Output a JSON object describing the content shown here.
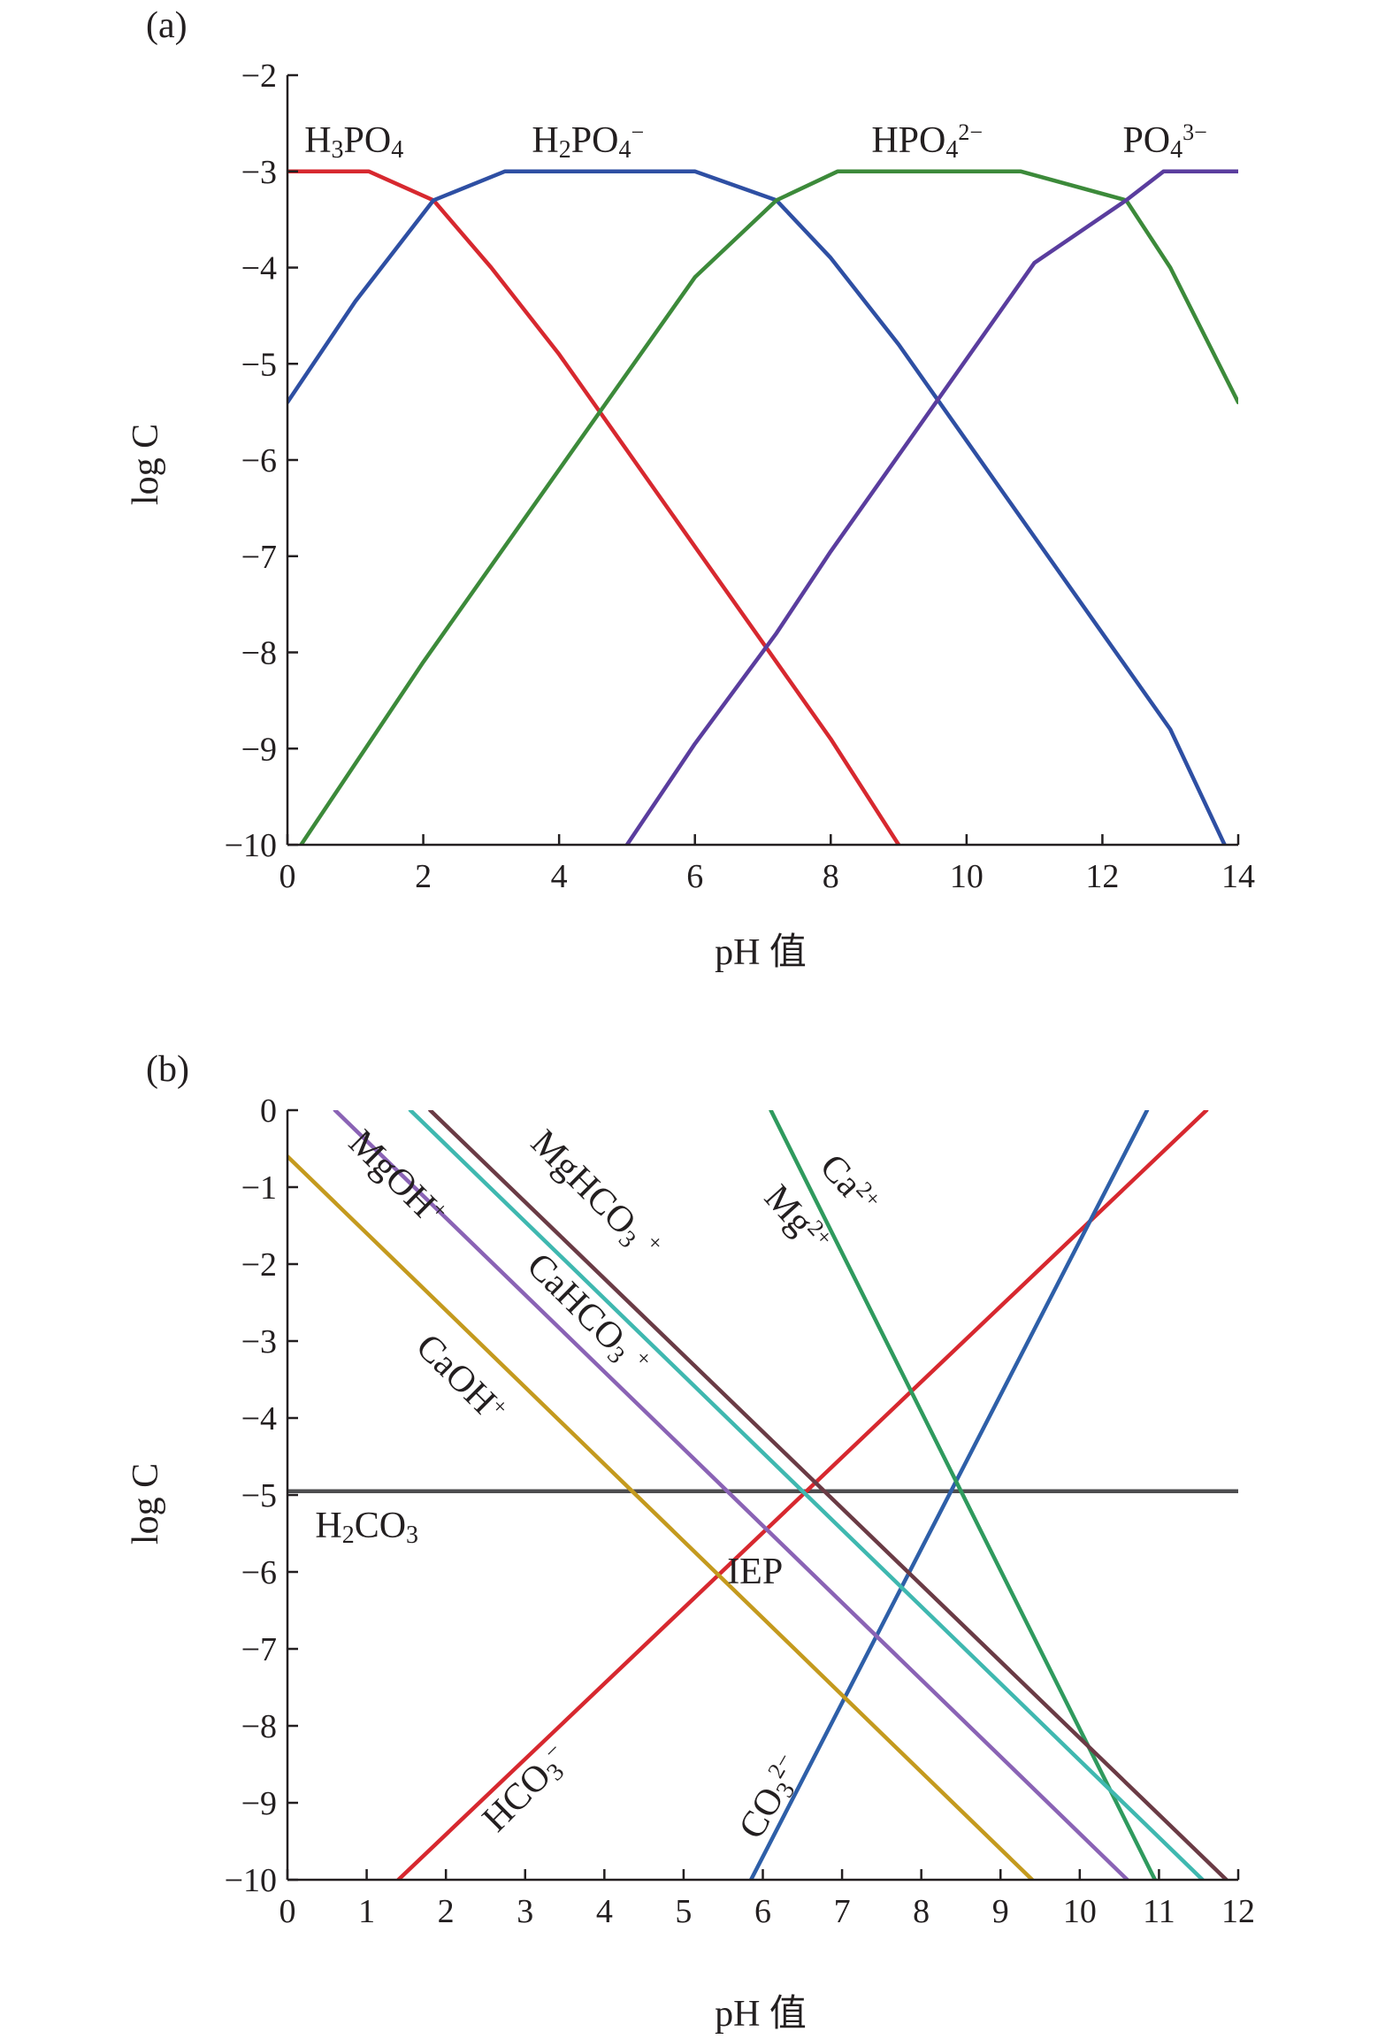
{
  "chart_data": [
    {
      "panel": "(a)",
      "type": "line",
      "xlabel": "pH 值",
      "ylabel": "log C",
      "xlim": [
        0,
        14
      ],
      "ylim": [
        -10,
        -2
      ],
      "xticks": [
        0,
        2,
        4,
        6,
        8,
        10,
        12,
        14
      ],
      "yticks": [
        -2,
        -3,
        -4,
        -5,
        -6,
        -7,
        -8,
        -9,
        -10
      ],
      "grid": false,
      "legend": "none",
      "total_concentration_log": -3,
      "pKa": [
        2.15,
        7.2,
        12.35
      ],
      "series": [
        {
          "label": [
            {
              "t": "H"
            },
            {
              "t": "3",
              "sub": true
            },
            {
              "t": "PO"
            },
            {
              "t": "4",
              "sub": true
            }
          ],
          "color": "#d7282f",
          "x": [
            0,
            1.2,
            2.15,
            3,
            4,
            5,
            6,
            7,
            8,
            9
          ],
          "y": [
            -3,
            -3,
            -3.3,
            -4.0,
            -4.9,
            -5.9,
            -6.9,
            -7.9,
            -8.9,
            -10
          ]
        },
        {
          "label": [
            {
              "t": "H"
            },
            {
              "t": "2",
              "sub": true
            },
            {
              "t": "PO"
            },
            {
              "t": "4",
              "sub": true
            },
            {
              "t": "−",
              "sup": true
            }
          ],
          "color": "#2e4fa3",
          "x": [
            0,
            1,
            2.15,
            3.2,
            6,
            7.2,
            8,
            9,
            10,
            11,
            12,
            13,
            13.8
          ],
          "y": [
            -5.4,
            -4.35,
            -3.3,
            -3,
            -3,
            -3.3,
            -3.9,
            -4.8,
            -5.8,
            -6.8,
            -7.8,
            -8.8,
            -10
          ]
        },
        {
          "label": [
            {
              "t": "HPO"
            },
            {
              "t": "4",
              "sub": true
            },
            {
              "t": "2−",
              "sup": true
            }
          ],
          "color": "#3c8a3a",
          "x": [
            0.2,
            2,
            4,
            6,
            7.2,
            8.1,
            10.8,
            12.35,
            13,
            14
          ],
          "y": [
            -10,
            -8.1,
            -6.1,
            -4.1,
            -3.3,
            -3,
            -3,
            -3.3,
            -4.0,
            -5.4
          ]
        },
        {
          "label": [
            {
              "t": "PO"
            },
            {
              "t": "4",
              "sub": true
            },
            {
              "t": "3−",
              "sup": true
            }
          ],
          "color": "#5a3d9e",
          "x": [
            5,
            6,
            7.2,
            8,
            9,
            10,
            11,
            12.35,
            12.9,
            14
          ],
          "y": [
            -10,
            -8.95,
            -7.8,
            -6.95,
            -5.95,
            -4.95,
            -3.95,
            -3.3,
            -3,
            -3
          ]
        }
      ],
      "annotations": [
        {
          "text": [
            {
              "t": "H"
            },
            {
              "t": "3",
              "sub": true
            },
            {
              "t": "PO"
            },
            {
              "t": "4",
              "sub": true
            }
          ],
          "x": 0.25,
          "y": -2.8,
          "angle": 0
        },
        {
          "text": [
            {
              "t": "H"
            },
            {
              "t": "2",
              "sub": true
            },
            {
              "t": "PO"
            },
            {
              "t": "4",
              "sub": true
            },
            {
              "t": "−",
              "sup": true
            }
          ],
          "x": 3.6,
          "y": -2.8,
          "angle": 0
        },
        {
          "text": [
            {
              "t": "HPO"
            },
            {
              "t": "4",
              "sub": true
            },
            {
              "t": "2−",
              "sup": true
            }
          ],
          "x": 8.6,
          "y": -2.8,
          "angle": 0
        },
        {
          "text": [
            {
              "t": "PO"
            },
            {
              "t": "4",
              "sub": true
            },
            {
              "t": "3−",
              "sup": true
            }
          ],
          "x": 12.3,
          "y": -2.8,
          "angle": 0
        }
      ]
    },
    {
      "panel": "(b)",
      "type": "line",
      "xlabel": "pH 值",
      "ylabel": "log C",
      "xlim": [
        0,
        12
      ],
      "ylim": [
        -10,
        0
      ],
      "xticks": [
        0,
        1,
        2,
        3,
        4,
        5,
        6,
        7,
        8,
        9,
        10,
        11,
        12
      ],
      "yticks": [
        0,
        -1,
        -2,
        -3,
        -4,
        -5,
        -6,
        -7,
        -8,
        -9,
        -10
      ],
      "grid": false,
      "legend": "none",
      "series": [
        {
          "label": [
            {
              "t": "H"
            },
            {
              "t": "2",
              "sub": true
            },
            {
              "t": "CO"
            },
            {
              "t": "3",
              "sub": true
            }
          ],
          "color": "#4d4d4f",
          "x": [
            0,
            12
          ],
          "y": [
            -4.95,
            -4.95
          ]
        },
        {
          "label": [
            {
              "t": "HCO"
            },
            {
              "t": "3",
              "sub": true
            },
            {
              "t": "−",
              "sup": true
            }
          ],
          "color": "#d7282f",
          "x": [
            1.4,
            11.6
          ],
          "y": [
            -10,
            0
          ]
        },
        {
          "label": [
            {
              "t": "CO"
            },
            {
              "t": "3",
              "sub": true
            },
            {
              "t": "2−",
              "sup": true
            }
          ],
          "color": "#2e5fa8",
          "x": [
            5.85,
            10.85
          ],
          "y": [
            -10,
            0
          ]
        },
        {
          "label": [
            {
              "t": "Ca"
            },
            {
              "t": "2+",
              "sup": true
            }
          ],
          "color": "#2f9a5e",
          "x": [
            6.1,
            10.95
          ],
          "y": [
            0,
            -10
          ]
        },
        {
          "label": [
            {
              "t": "MgHCO"
            },
            {
              "t": "3",
              "sub": true
            },
            {
              "t": "+",
              "sup": true
            }
          ],
          "color": "#6a3b45",
          "x": [
            1.8,
            11.85
          ],
          "y": [
            0,
            -10
          ]
        },
        {
          "label": [
            {
              "t": "CaHCO"
            },
            {
              "t": "3",
              "sub": true
            },
            {
              "t": "+",
              "sup": true
            }
          ],
          "color": "#3fb8b0",
          "x": [
            1.55,
            11.55
          ],
          "y": [
            0,
            -10
          ]
        },
        {
          "label": [
            {
              "t": "MgOH"
            },
            {
              "t": "+",
              "sup": true
            }
          ],
          "color": "#8a63b5",
          "x": [
            0.6,
            10.6
          ],
          "y": [
            0,
            -10
          ]
        },
        {
          "label": [
            {
              "t": "CaOH"
            },
            {
              "t": "+",
              "sup": true
            }
          ],
          "color": "#c49a1e",
          "x": [
            0,
            9.4
          ],
          "y": [
            -0.6,
            -10
          ]
        }
      ],
      "annotations": [
        {
          "text": [
            {
              "t": "MgOH"
            },
            {
              "t": "+",
              "sup": true
            }
          ],
          "x": 0.75,
          "y": -0.45,
          "angle": 45
        },
        {
          "text": [
            {
              "t": "CaOH"
            },
            {
              "t": "+",
              "sup": true
            }
          ],
          "x": 1.6,
          "y": -3.1,
          "angle": 45
        },
        {
          "text": [
            {
              "t": "MgHCO"
            },
            {
              "t": "3",
              "sub": true
            },
            {
              "t": " "
            },
            {
              "t": "+",
              "sup": true
            }
          ],
          "x": 3.05,
          "y": -0.45,
          "angle": 45
        },
        {
          "text": [
            {
              "t": "CaHCO"
            },
            {
              "t": "3",
              "sub": true
            },
            {
              "t": " "
            },
            {
              "t": "+",
              "sup": true
            }
          ],
          "x": 3.0,
          "y": -2.05,
          "angle": 45
        },
        {
          "text": [
            {
              "t": "Ca"
            },
            {
              "t": "2+",
              "sup": true
            }
          ],
          "x": 6.7,
          "y": -0.75,
          "angle": 48
        },
        {
          "text": [
            {
              "t": "Mg"
            },
            {
              "t": "2+",
              "sup": true
            }
          ],
          "x": 6.0,
          "y": -1.15,
          "angle": 48
        },
        {
          "text": [
            {
              "t": "H"
            },
            {
              "t": "2",
              "sub": true
            },
            {
              "t": "CO"
            },
            {
              "t": "3",
              "sub": true
            }
          ],
          "x": 0.35,
          "y": -5.55,
          "angle": 0
        },
        {
          "text": [
            {
              "t": "IEP"
            }
          ],
          "x": 5.55,
          "y": -6.15,
          "angle": 0
        },
        {
          "text": [
            {
              "t": "HCO"
            },
            {
              "t": "3",
              "sub": true
            },
            {
              "t": "−",
              "sup": true
            }
          ],
          "x": 2.65,
          "y": -9.4,
          "angle": -45
        },
        {
          "text": [
            {
              "t": "CO"
            },
            {
              "t": "3",
              "sub": true
            },
            {
              "t": "2−",
              "sup": true
            }
          ],
          "x": 5.95,
          "y": -9.5,
          "angle": -60
        }
      ]
    }
  ]
}
